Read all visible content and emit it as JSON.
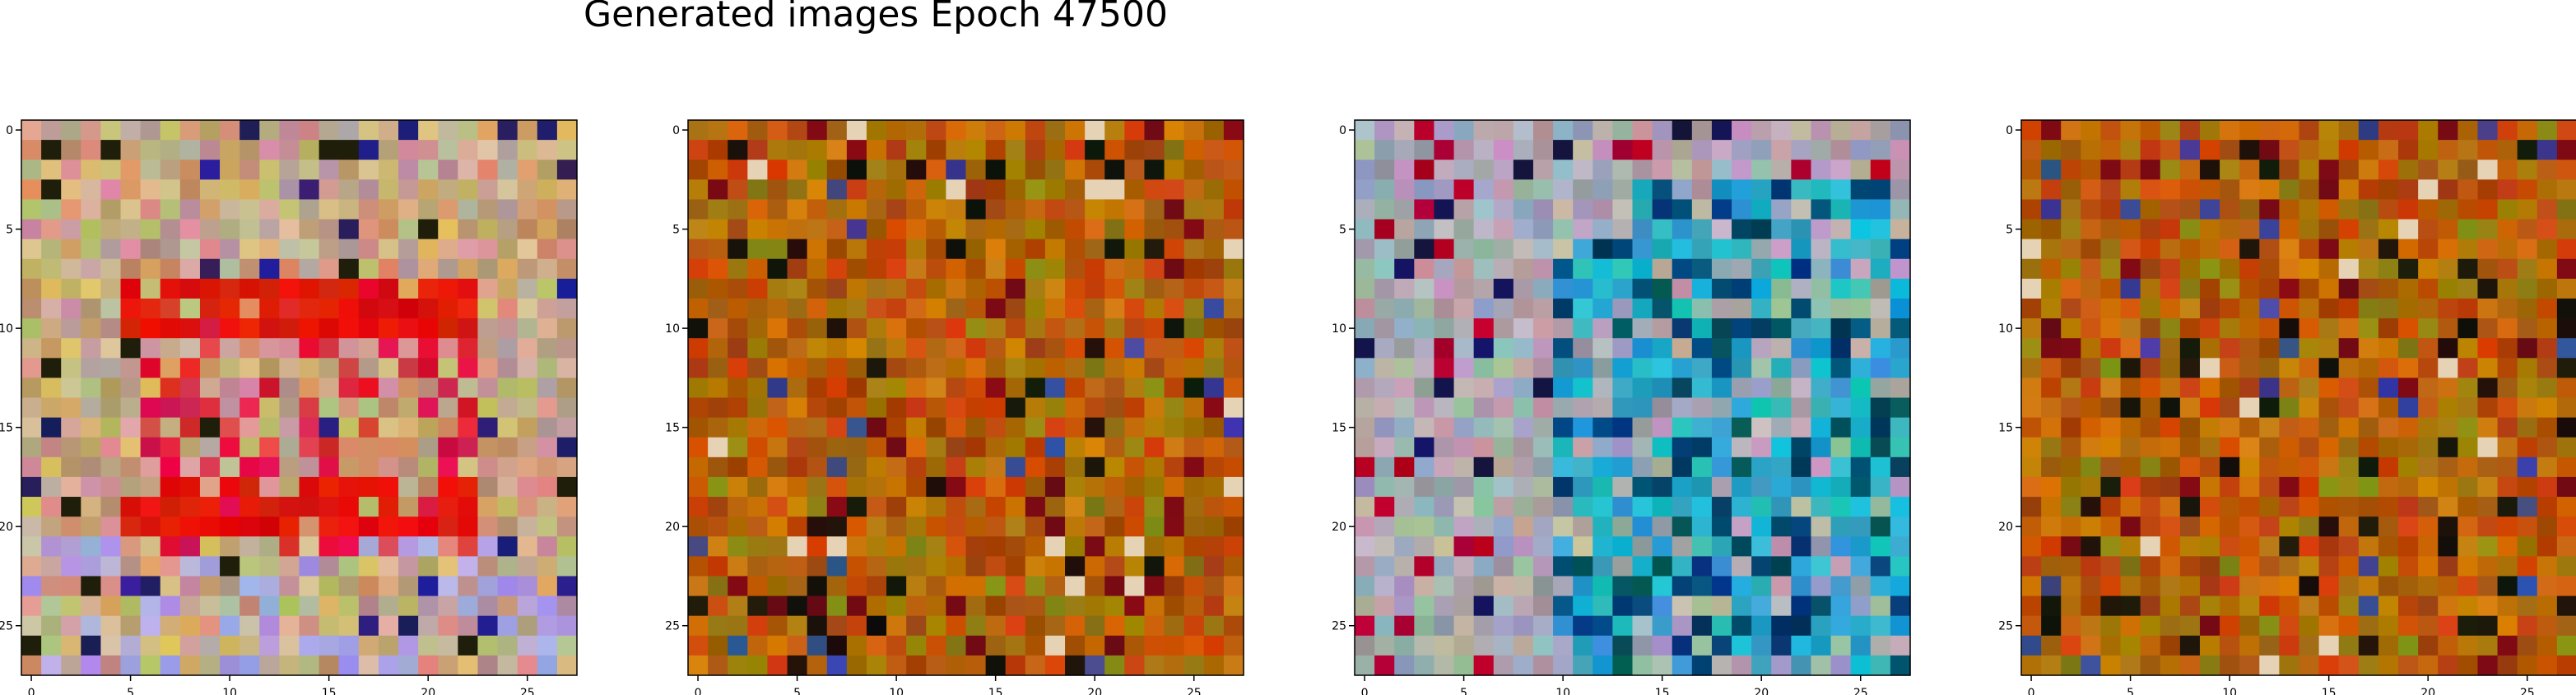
{
  "figure": {
    "title": "Generated images Epoch 47500"
  },
  "chart_data": [
    {
      "type": "heatmap",
      "style": "warm-red-stripes",
      "xlim": [
        -0.5,
        27.5
      ],
      "ylim": [
        27.5,
        -0.5
      ],
      "x_ticks": [
        0,
        5,
        10,
        15,
        20,
        25
      ],
      "y_ticks": [
        0,
        5,
        10,
        15,
        20,
        25
      ],
      "grid": false
    },
    {
      "type": "heatmap",
      "style": "brown-noise",
      "xlim": [
        -0.5,
        27.5
      ],
      "ylim": [
        27.5,
        -0.5
      ],
      "x_ticks": [
        0,
        5,
        10,
        15,
        20,
        25
      ],
      "y_ticks": [
        0,
        5,
        10,
        15,
        20,
        25
      ],
      "grid": false
    },
    {
      "type": "heatmap",
      "style": "pastel-cyan",
      "xlim": [
        -0.5,
        27.5
      ],
      "ylim": [
        27.5,
        -0.5
      ],
      "x_ticks": [
        0,
        5,
        10,
        15,
        20,
        25
      ],
      "y_ticks": [
        0,
        5,
        10,
        15,
        20,
        25
      ],
      "grid": false
    },
    {
      "type": "heatmap",
      "style": "brown-noise",
      "xlim": [
        -0.5,
        27.5
      ],
      "ylim": [
        27.5,
        -0.5
      ],
      "x_ticks": [
        0,
        5,
        10,
        15,
        20,
        25
      ],
      "y_ticks": [
        0,
        5,
        10,
        15,
        20,
        25
      ],
      "grid": false
    }
  ]
}
